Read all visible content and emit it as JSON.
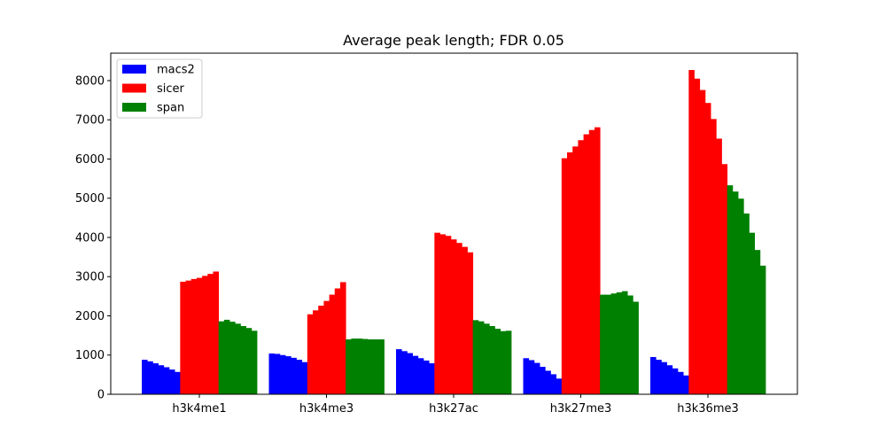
{
  "chart_data": {
    "type": "bar",
    "title": "Average peak length; FDR 0.05",
    "xlabel": "",
    "ylabel": "",
    "categories": [
      "h3k4me1",
      "h3k4me3",
      "h3k27ac",
      "h3k27me3",
      "h3k36me3"
    ],
    "ylim": [
      0,
      8700
    ],
    "yticks": [
      0,
      1000,
      2000,
      3000,
      4000,
      5000,
      6000,
      7000,
      8000
    ],
    "grid": false,
    "legend_position": "top-left",
    "series": [
      {
        "name": "macs2",
        "color": "#0000ff",
        "values": [
          [
            880,
            840,
            790,
            740,
            690,
            630,
            570
          ],
          [
            1040,
            1030,
            1000,
            970,
            930,
            880,
            820
          ],
          [
            1150,
            1100,
            1050,
            980,
            920,
            860,
            790
          ],
          [
            920,
            870,
            800,
            700,
            600,
            510,
            400
          ],
          [
            950,
            880,
            820,
            740,
            660,
            570,
            480
          ]
        ]
      },
      {
        "name": "sicer",
        "color": "#ff0000",
        "values": [
          [
            2870,
            2900,
            2940,
            2970,
            3020,
            3070,
            3130
          ],
          [
            2040,
            2140,
            2260,
            2380,
            2540,
            2700,
            2860
          ],
          [
            4120,
            4080,
            4040,
            3950,
            3860,
            3760,
            3620
          ],
          [
            6020,
            6170,
            6320,
            6480,
            6630,
            6740,
            6810
          ],
          [
            8270,
            8050,
            7760,
            7430,
            7020,
            6520,
            5870
          ]
        ]
      },
      {
        "name": "span",
        "color": "#008000",
        "values": [
          [
            1860,
            1900,
            1850,
            1800,
            1740,
            1690,
            1620
          ],
          [
            1400,
            1420,
            1420,
            1410,
            1400,
            1400,
            1400
          ],
          [
            1890,
            1860,
            1800,
            1740,
            1670,
            1610,
            1620
          ],
          [
            2540,
            2540,
            2570,
            2600,
            2630,
            2520,
            2360
          ],
          [
            5330,
            5170,
            4990,
            4610,
            4120,
            3680,
            3280
          ]
        ]
      }
    ]
  }
}
